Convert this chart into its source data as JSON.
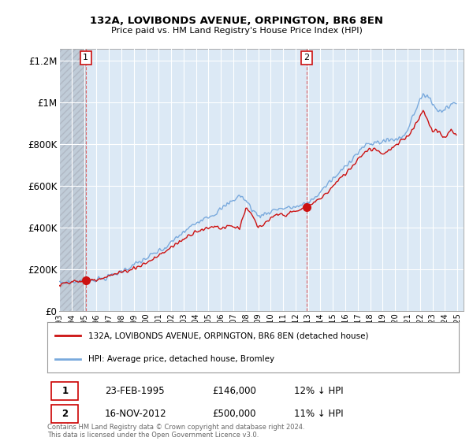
{
  "title1": "132A, LOVIBONDS AVENUE, ORPINGTON, BR6 8EN",
  "title2": "Price paid vs. HM Land Registry's House Price Index (HPI)",
  "background_color": "#ffffff",
  "plot_bg_color": "#dce9f5",
  "hatch_color": "#c0ccd8",
  "hatch_region_end": 1995.14,
  "red_color": "#cc1111",
  "blue_color": "#7aaadd",
  "red_dashed_color": "#dd4444",
  "legend_label_red": "132A, LOVIBONDS AVENUE, ORPINGTON, BR6 8EN (detached house)",
  "legend_label_blue": "HPI: Average price, detached house, Bromley",
  "footer": "Contains HM Land Registry data © Crown copyright and database right 2024.\nThis data is licensed under the Open Government Licence v3.0.",
  "point1_label": "1",
  "point1_date": "23-FEB-1995",
  "point1_price": "£146,000",
  "point1_hpi": "12% ↓ HPI",
  "point1_x": 1995.14,
  "point1_y": 146000,
  "point2_label": "2",
  "point2_date": "16-NOV-2012",
  "point2_price": "£500,000",
  "point2_hpi": "11% ↓ HPI",
  "point2_x": 2012.88,
  "point2_y": 500000,
  "ylim": [
    0,
    1260000
  ],
  "xlim_start": 1993.0,
  "xlim_end": 2025.5,
  "yticks": [
    0,
    200000,
    400000,
    600000,
    800000,
    1000000,
    1200000
  ],
  "ytick_labels": [
    "£0",
    "£200K",
    "£400K",
    "£600K",
    "£800K",
    "£1M",
    "£1.2M"
  ]
}
